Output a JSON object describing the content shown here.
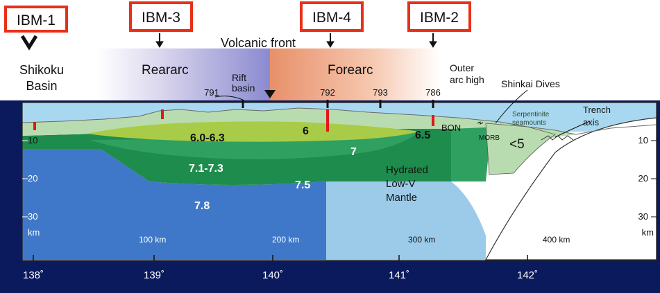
{
  "site_boxes": [
    "IBM-1",
    "IBM-3",
    "IBM-4",
    "IBM-2"
  ],
  "top_labels": {
    "volcanic_front": "Volcanic front",
    "shikoku_1": "Shikoku",
    "shikoku_2": "Basin",
    "reararc": "Reararc",
    "rift_1": "Rift",
    "rift_2": "basin",
    "forearc": "Forearc",
    "outer_1": "Outer",
    "outer_2": "arc high",
    "shinkai": "Shinkai Dives"
  },
  "sites": [
    "791",
    "792",
    "793",
    "786"
  ],
  "section": {
    "velocities": {
      "v60": "6.0-6.3",
      "v6": "6",
      "v65": "6.5",
      "v7": "7",
      "v71": "7.1-7.3",
      "v75": "7.5",
      "v78": "7.8",
      "v5": "<5"
    },
    "bon": "BON",
    "morb": "MORB",
    "serp_1": "Serpentinite",
    "serp_2": "seamounts",
    "trench_1": "Trench",
    "trench_2": "axis",
    "hydrated_1": "Hydrated",
    "hydrated_2": "Low-V",
    "hydrated_3": "Mantle",
    "dist": [
      "100 km",
      "200 km",
      "300 km",
      "400 km"
    ]
  },
  "depth_left": [
    "10",
    "20",
    "30",
    "km"
  ],
  "depth_right": [
    "10",
    "20",
    "30",
    "km"
  ],
  "longitudes": [
    "138˚",
    "139˚",
    "140˚",
    "141˚",
    "142˚"
  ],
  "colors": {
    "background": "#0a1a5c",
    "sea": "#a8d8f0",
    "crust_pale": "#b8dcb0",
    "crust_lime": "#a8cc48",
    "crust_mid": "#30a060",
    "crust_dark": "#1e8c4c",
    "mantle": "#3f78c8",
    "hydrated_mantle": "#9ccbea",
    "box_border": "#e83018"
  }
}
